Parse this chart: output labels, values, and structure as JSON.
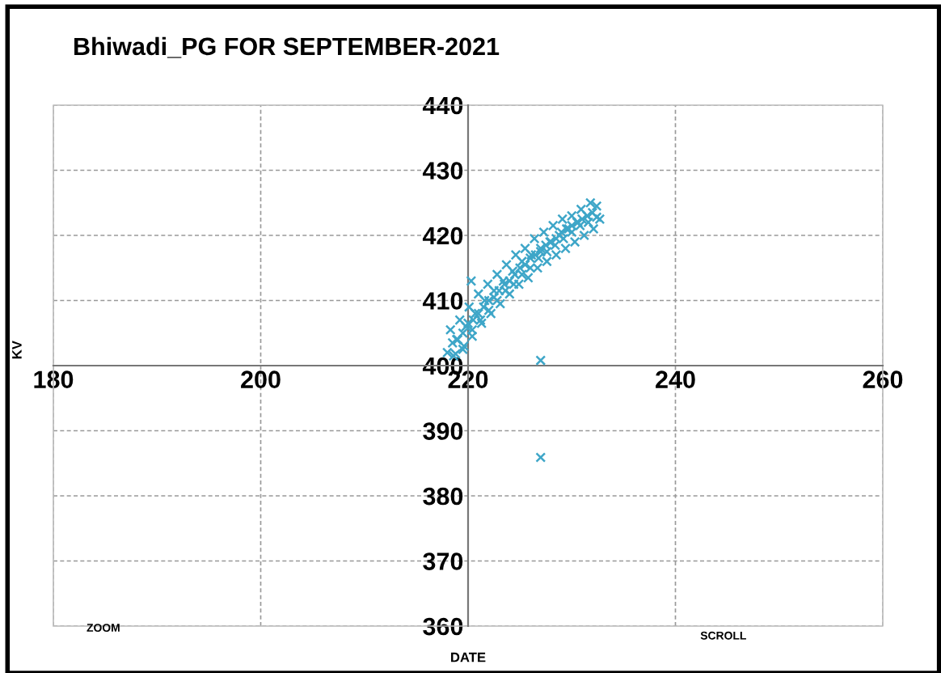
{
  "chart_data": {
    "type": "scatter",
    "title": "Bhiwadi_PG FOR SEPTEMBER-2021",
    "xlabel": "DATE",
    "ylabel": "KV",
    "annotations": [
      "ZOOM",
      "SCROLL"
    ],
    "xlim": [
      180,
      260
    ],
    "xticks": [
      180,
      200,
      220,
      240,
      260
    ],
    "ylim": [
      360,
      440
    ],
    "yticks": [
      360,
      370,
      380,
      390,
      400,
      410,
      420,
      430,
      440
    ],
    "grid": true,
    "marker": "cross",
    "legend": false,
    "series": [
      {
        "color": "#3ea6c8",
        "x": [
          218.0,
          218.3,
          218.6,
          218.9,
          219.2,
          219.5,
          219.8,
          220.1,
          220.4,
          220.7,
          221.0,
          221.3,
          221.6,
          221.9,
          222.2,
          222.5,
          222.8,
          223.1,
          223.4,
          223.7,
          224.0,
          224.3,
          224.6,
          224.9,
          225.2,
          225.5,
          225.8,
          226.1,
          226.4,
          226.7,
          227.0,
          227.3,
          227.6,
          227.9,
          228.2,
          228.5,
          228.8,
          229.1,
          229.4,
          229.7,
          230.0,
          230.3,
          230.6,
          230.9,
          231.2,
          231.5,
          231.8,
          232.1,
          232.4,
          232.7,
          218.5,
          219.0,
          219.5,
          220.0,
          220.5,
          221.0,
          221.5,
          222.0,
          222.5,
          223.0,
          223.5,
          224.0,
          224.5,
          225.0,
          225.5,
          226.0,
          226.5,
          227.0,
          227.5,
          228.0,
          228.5,
          229.0,
          229.5,
          230.0,
          230.5,
          231.0,
          231.5,
          232.0,
          218.8,
          219.6,
          220.4,
          221.2,
          222.0,
          222.8,
          223.6,
          224.4,
          225.2,
          226.0,
          226.8,
          227.6,
          228.4,
          229.2,
          230.0,
          230.8,
          231.6,
          232.4,
          220.3,
          227.0,
          227.0
        ],
        "values": [
          402.0,
          405.5,
          401.5,
          404.0,
          407.0,
          402.5,
          406.0,
          409.0,
          404.5,
          408.0,
          411.0,
          406.5,
          410.0,
          412.5,
          408.0,
          411.5,
          414.0,
          409.5,
          413.0,
          415.5,
          411.0,
          414.5,
          417.0,
          412.5,
          416.0,
          418.0,
          413.5,
          417.0,
          419.5,
          415.0,
          418.0,
          420.5,
          416.0,
          419.0,
          421.5,
          417.0,
          420.0,
          422.5,
          418.0,
          421.0,
          423.0,
          419.0,
          422.0,
          424.0,
          420.0,
          423.0,
          425.0,
          421.0,
          424.5,
          422.5,
          403.5,
          404.0,
          405.0,
          406.5,
          407.0,
          408.0,
          409.0,
          410.0,
          410.5,
          411.5,
          412.5,
          413.0,
          414.0,
          415.0,
          415.5,
          416.5,
          417.0,
          417.5,
          418.5,
          419.0,
          419.5,
          420.5,
          421.0,
          421.5,
          422.0,
          422.5,
          423.0,
          423.5,
          401.8,
          403.0,
          405.5,
          407.0,
          408.5,
          410.0,
          411.5,
          412.5,
          414.0,
          415.0,
          416.5,
          417.5,
          418.5,
          419.5,
          420.5,
          421.5,
          422.0,
          422.8,
          413.0,
          400.8,
          385.9
        ]
      }
    ]
  }
}
